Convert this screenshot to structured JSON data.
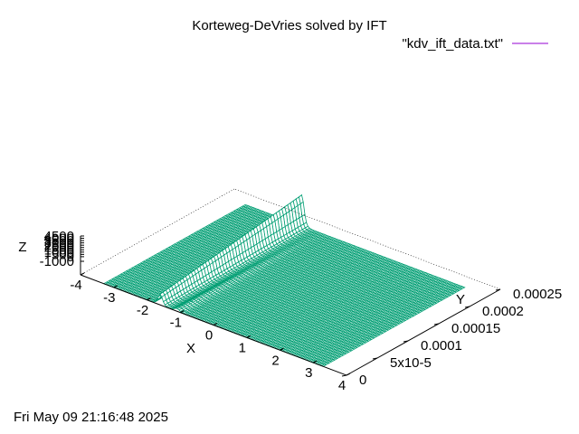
{
  "chart_data": {
    "type": "surface",
    "title": "Korteweg-DeVries solved by IFT",
    "legend": {
      "label": "\"kdv_ift_data.txt\"",
      "color": "#9400d3",
      "placement": "top-right"
    },
    "surface_color": "#009e73",
    "xlabel": "X",
    "ylabel": "Y",
    "zlabel": "Z",
    "xlim": [
      -4,
      4
    ],
    "ylim": [
      0,
      0.00025
    ],
    "zlim": [
      -1000,
      4500
    ],
    "x_ticks": [
      "-4",
      "-3",
      "-2",
      "-1",
      "0",
      "1",
      "2",
      "3",
      "4"
    ],
    "y_ticks": [
      "0",
      "5x10-5",
      "0.0001",
      "0.00015",
      "0.0002",
      "0.00025"
    ],
    "z_ticks": [
      "-1000",
      "0",
      "500",
      "1000",
      "1500",
      "2000",
      "2500",
      "3000",
      "3500",
      "4000",
      "4500"
    ],
    "data_x_range": [
      -3.3,
      3.3
    ],
    "data_y_range": [
      0,
      0.00023
    ],
    "soliton_peak": {
      "x": -1.6,
      "z_max": 4500
    },
    "grid": false
  },
  "timestamp": "Fri May 09 21:16:48 2025"
}
